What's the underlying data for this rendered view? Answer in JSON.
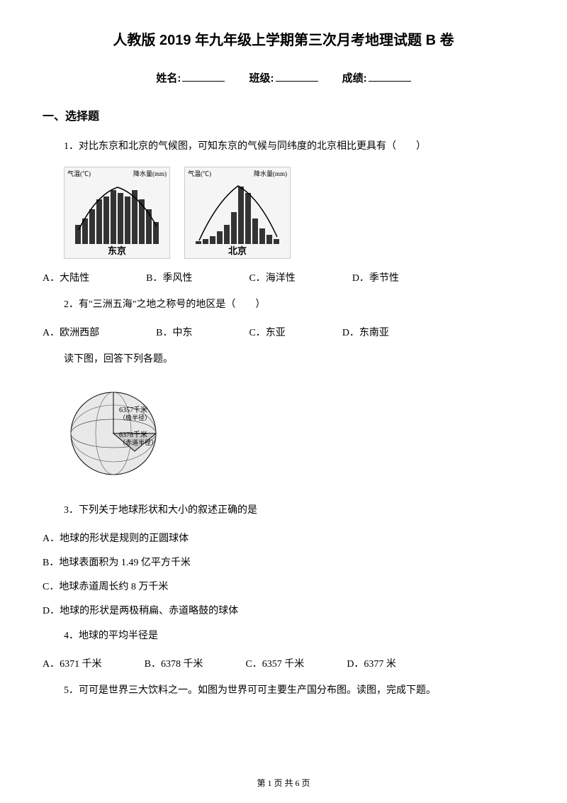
{
  "title": "人教版 2019 年九年级上学期第三次月考地理试题 B 卷",
  "info": {
    "name_label": "姓名:",
    "class_label": "班级:",
    "score_label": "成绩:"
  },
  "section1_header": "一、选择题",
  "q1": {
    "text": "1．对比东京和北京的气候图，可知东京的气候与同纬度的北京相比更具有（　　）",
    "chart1_label": "东京",
    "chart2_label": "北京",
    "axis_left": "气温(℃)",
    "axis_right": "降水量(mm)",
    "tokyo_bars": [
      30,
      40,
      55,
      70,
      75,
      85,
      80,
      75,
      85,
      70,
      55,
      35
    ],
    "beijing_bars": [
      5,
      8,
      12,
      20,
      30,
      50,
      90,
      80,
      40,
      25,
      15,
      8
    ],
    "opts": {
      "a": "A．大陆性",
      "b": "B．季风性",
      "c": "C．海洋性",
      "d": "D．季节性"
    }
  },
  "q2": {
    "text": "2．有\"三洲五海\"之地之称号的地区是（　　）",
    "opts": {
      "a": "A．欧洲西部",
      "b": "B．中东",
      "c": "C．东亚",
      "d": "D．东南亚"
    }
  },
  "read_prompt": "读下图，回答下列各题。",
  "globe": {
    "label1": "6357千米",
    "label1_sub": "（极半径）",
    "label2": "6378千米",
    "label2_sub": "（赤道半径）"
  },
  "q3": {
    "text": "3．下列关于地球形状和大小的叙述正确的是",
    "opts": {
      "a": "A．地球的形状是规则的正圆球体",
      "b": "B．地球表面积为 1.49 亿平方千米",
      "c": "C．地球赤道周长约 8 万千米",
      "d": "D．地球的形状是两极稍扁、赤道略鼓的球体"
    }
  },
  "q4": {
    "text": "4．地球的平均半径是",
    "opts": {
      "a": "A．6371 千米",
      "b": "B．6378 千米",
      "c": "C．6357 千米",
      "d": "D．6377 米"
    }
  },
  "q5": {
    "text": "5．可可是世界三大饮料之一。如图为世界可可主要生产国分布图。读图，完成下题。"
  },
  "footer": "第 1 页 共 6 页"
}
